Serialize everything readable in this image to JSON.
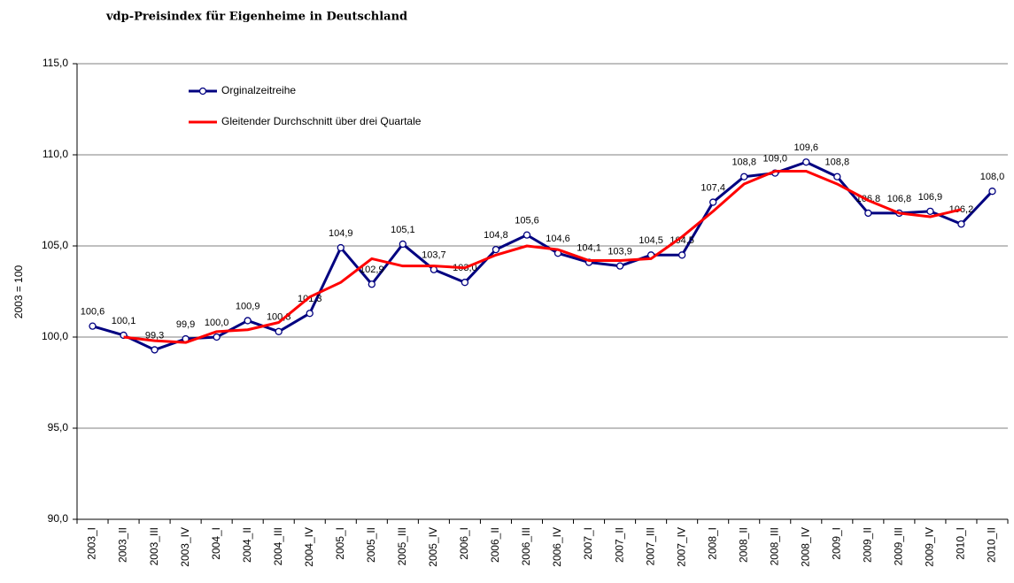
{
  "chart_data": {
    "type": "line",
    "title": "vdp-Preisindex für Eigenheime in Deutschland",
    "y_label": "2003 = 100",
    "categories": [
      "2003_I",
      "2003_II",
      "2003_III",
      "2003_IV",
      "2004_I",
      "2004_II",
      "2004_III",
      "2004_IV",
      "2005_I",
      "2005_II",
      "2005_III",
      "2005_IV",
      "2006_I",
      "2006_II",
      "2006_III",
      "2006_IV",
      "2007_I",
      "2007_II",
      "2007_III",
      "2007_IV",
      "2008_I",
      "2008_II",
      "2008_III",
      "2008_IV",
      "2009_I",
      "2009_II",
      "2009_III",
      "2009_IV",
      "2010_I",
      "2010_II"
    ],
    "series": [
      {
        "name": "Orginalzeitreihe",
        "color": "#000080",
        "marker": "circle",
        "values": [
          100.6,
          100.1,
          99.3,
          99.9,
          100.0,
          100.9,
          100.3,
          101.3,
          104.9,
          102.9,
          105.1,
          103.7,
          103.0,
          104.8,
          105.6,
          104.6,
          104.1,
          103.9,
          104.5,
          104.5,
          107.4,
          108.8,
          109.0,
          109.6,
          108.8,
          106.8,
          106.8,
          106.9,
          106.2,
          108.0
        ],
        "value_labels": [
          "100,6",
          "100,1",
          "99,3",
          "99,9",
          "100,0",
          "100,9",
          "100,3",
          "101,3",
          "104,9",
          "102,9",
          "105,1",
          "103,7",
          "103,0",
          "104,8",
          "105,6",
          "104,6",
          "104,1",
          "103,9",
          "104,5",
          "104,5",
          "107,4",
          "108,8",
          "109,0",
          "109,6",
          "108,8",
          "106,8",
          "106,8",
          "106,9",
          "106,2",
          "108,0"
        ]
      },
      {
        "name": "Gleitender Durchschnitt über drei Quartale",
        "color": "#ff0000",
        "values": [
          null,
          100.0,
          99.8,
          99.7,
          100.3,
          100.4,
          100.8,
          102.2,
          103.0,
          104.3,
          103.9,
          103.9,
          103.8,
          104.5,
          105.0,
          104.8,
          104.2,
          104.2,
          104.3,
          105.5,
          106.9,
          108.4,
          109.1,
          109.1,
          108.4,
          107.5,
          106.8,
          106.6,
          107.0,
          null
        ]
      }
    ],
    "ylim": [
      90,
      115
    ],
    "yticks": [
      {
        "value": 90,
        "label": "90,0"
      },
      {
        "value": 95,
        "label": "95,0"
      },
      {
        "value": 100,
        "label": "100,0"
      },
      {
        "value": 105,
        "label": "105,0"
      },
      {
        "value": 110,
        "label": "110,0"
      },
      {
        "value": 115,
        "label": "115,0"
      }
    ],
    "grid": true,
    "legend": "upper left"
  }
}
